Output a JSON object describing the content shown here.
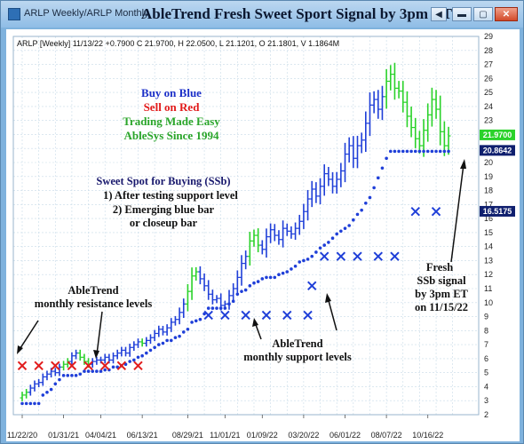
{
  "window": {
    "tab_text": "ARLP Weekly/ARLP Monthly",
    "title": "AbleTrend Fresh Sweet Sport Signal by 3pm ET",
    "buttons": {
      "back": "◀",
      "minimize": "▬",
      "maximize": "▢",
      "close": "✕"
    }
  },
  "chart_header": "ARLP [Weekly] 11/13/22 +0.7900 C 21.9700, H 22.0500, L 21.1201, O 21.1801, V 1.1864M",
  "legend_text": {
    "buy": "Buy on Blue",
    "sell": "Sell on Red",
    "easy": "Trading Made Easy",
    "since": "AbleSys Since 1994"
  },
  "sweet_spot": {
    "title": "Sweet Spot for Buying (SSb)",
    "line1": "1) After testing support level",
    "line2": "2) Emerging blue bar",
    "line3": "or closeup bar"
  },
  "annotations": {
    "resistance_1": "AbleTrend",
    "resistance_2": "monthly resistance levels",
    "support_1": "AbleTrend",
    "support_2": "monthly support levels",
    "fresh_1": "Fresh",
    "fresh_2": "SSb signal",
    "fresh_3": "by 3pm ET",
    "fresh_4": "on 11/15/22"
  },
  "price_tags": {
    "last": "21.9700",
    "support": "20.8642",
    "monthly": "16.5175"
  },
  "colors": {
    "blue_bar": "#1f3fd8",
    "green_bar": "#2ad22a",
    "red": "#e21b1b",
    "support_dot": "#1f3fd8",
    "grid": "#c8dbe8",
    "buy_text": "#1b2fc8",
    "sell_text": "#e21b1b",
    "easy_text": "#2aa52a",
    "navy_text": "#1a1a6e",
    "tag_green": "#2ad22a",
    "tag_navy": "#0f1f6e"
  },
  "chart_data": {
    "type": "ohlc",
    "title": "AbleTrend Fresh Sweet Sport Signal by 3pm ET",
    "ylim": [
      2,
      29
    ],
    "y_ticks": [
      2,
      3,
      4,
      5,
      6,
      7,
      8,
      9,
      10,
      11,
      12,
      13,
      14,
      15,
      16,
      17,
      18,
      19,
      20,
      21,
      22,
      23,
      24,
      25,
      26,
      27,
      28,
      29
    ],
    "x_tick_labels": [
      "11/22/20",
      "01/31/21",
      "04/04/21",
      "06/13/21",
      "08/29/21",
      "11/01/21",
      "01/09/22",
      "03/20/22",
      "06/01/22",
      "08/07/22",
      "10/16/22"
    ],
    "x_ticks_index": [
      0,
      10,
      19,
      29,
      40,
      49,
      58,
      68,
      78,
      88,
      98
    ],
    "grid": true,
    "weekly_closes": [
      3.4,
      3.6,
      3.9,
      4.2,
      4.3,
      4.7,
      4.9,
      5.1,
      5.0,
      5.4,
      5.6,
      5.8,
      6.2,
      6.4,
      6.1,
      5.8,
      5.6,
      5.8,
      5.9,
      5.9,
      6.1,
      5.9,
      6.2,
      6.4,
      6.6,
      6.4,
      6.8,
      7.0,
      7.2,
      7.1,
      7.3,
      7.5,
      7.8,
      8.1,
      7.9,
      8.2,
      8.6,
      8.8,
      9.3,
      9.9,
      10.8,
      11.9,
      12.2,
      11.7,
      11.2,
      10.6,
      10.2,
      10.3,
      9.8,
      9.9,
      10.5,
      11.0,
      11.8,
      12.8,
      13.3,
      14.4,
      14.8,
      14.1,
      13.8,
      14.7,
      15.2,
      14.8,
      14.5,
      15.3,
      15.1,
      14.9,
      15.3,
      15.8,
      16.5,
      17.4,
      18.1,
      17.6,
      18.3,
      19.2,
      18.8,
      18.3,
      18.8,
      19.4,
      20.6,
      21.2,
      20.3,
      21.2,
      21.6,
      22.8,
      24.1,
      24.5,
      23.8,
      24.7,
      25.8,
      26.3,
      25.3,
      25.1,
      24.3,
      23.3,
      22.5,
      21.7,
      21.2,
      22.3,
      23.4,
      24.5,
      23.8,
      22.2,
      21.2,
      21.9
    ],
    "weekly_color": [
      "G",
      "G",
      "B",
      "B",
      "B",
      "B",
      "B",
      "B",
      "B",
      "B",
      "G",
      "G",
      "B",
      "B",
      "G",
      "G",
      "G",
      "B",
      "B",
      "B",
      "B",
      "B",
      "B",
      "B",
      "B",
      "B",
      "B",
      "B",
      "B",
      "G",
      "B",
      "B",
      "B",
      "B",
      "B",
      "B",
      "B",
      "B",
      "B",
      "B",
      "G",
      "G",
      "G",
      "B",
      "B",
      "B",
      "B",
      "B",
      "B",
      "B",
      "B",
      "B",
      "B",
      "B",
      "B",
      "G",
      "G",
      "G",
      "B",
      "B",
      "B",
      "B",
      "B",
      "B",
      "B",
      "B",
      "B",
      "B",
      "B",
      "B",
      "B",
      "B",
      "B",
      "B",
      "B",
      "B",
      "B",
      "B",
      "B",
      "B",
      "B",
      "B",
      "B",
      "B",
      "B",
      "B",
      "B",
      "B",
      "G",
      "G",
      "G",
      "G",
      "G",
      "G",
      "G",
      "G",
      "G",
      "G",
      "G",
      "G",
      "G",
      "G",
      "G",
      "G"
    ],
    "support_dots": [
      2.8,
      2.8,
      2.8,
      2.8,
      2.8,
      3.4,
      3.6,
      3.8,
      4.2,
      4.5,
      4.8,
      4.8,
      4.8,
      4.8,
      4.9,
      5.1,
      5.1,
      5.1,
      5.1,
      5.1,
      5.2,
      5.2,
      5.4,
      5.4,
      5.5,
      5.6,
      5.8,
      5.9,
      6.1,
      6.2,
      6.4,
      6.6,
      6.8,
      7.0,
      7.1,
      7.3,
      7.3,
      7.5,
      7.6,
      7.9,
      8.1,
      8.6,
      8.7,
      8.8,
      9.2,
      9.6,
      9.6,
      9.6,
      9.6,
      9.6,
      9.9,
      10.1,
      10.6,
      10.8,
      10.9,
      11.2,
      11.4,
      11.5,
      11.7,
      11.8,
      11.8,
      11.8,
      12.0,
      12.1,
      12.2,
      12.4,
      12.6,
      12.9,
      13.0,
      13.1,
      13.3,
      13.6,
      13.9,
      14.1,
      14.3,
      14.6,
      14.9,
      15.1,
      15.3,
      15.5,
      15.9,
      16.3,
      16.6,
      17.1,
      17.5,
      18.2,
      18.9,
      19.6,
      20.3,
      20.8,
      20.8,
      20.8,
      20.8,
      20.8,
      20.8,
      20.8,
      20.8,
      20.8,
      20.8,
      20.8,
      20.8,
      20.8,
      20.8,
      20.8
    ],
    "resistance_x": [
      [
        0,
        5.5
      ],
      [
        4,
        5.5
      ],
      [
        8,
        5.5
      ],
      [
        12,
        5.5
      ],
      [
        16,
        5.5
      ],
      [
        20,
        5.5
      ],
      [
        24,
        5.5
      ],
      [
        28,
        5.5
      ]
    ],
    "support_x": [
      [
        45,
        9.1
      ],
      [
        49,
        9.1
      ],
      [
        54,
        9.1
      ],
      [
        59,
        9.1
      ],
      [
        64,
        9.1
      ],
      [
        69,
        9.1
      ],
      [
        70,
        11.2
      ],
      [
        73,
        13.3
      ],
      [
        77,
        13.3
      ],
      [
        81,
        13.3
      ],
      [
        86,
        13.3
      ],
      [
        90,
        13.3
      ],
      [
        95,
        16.5
      ],
      [
        100,
        16.5
      ]
    ],
    "current_price": 21.97,
    "support_level": 20.8642,
    "monthly_level": 16.5175
  }
}
